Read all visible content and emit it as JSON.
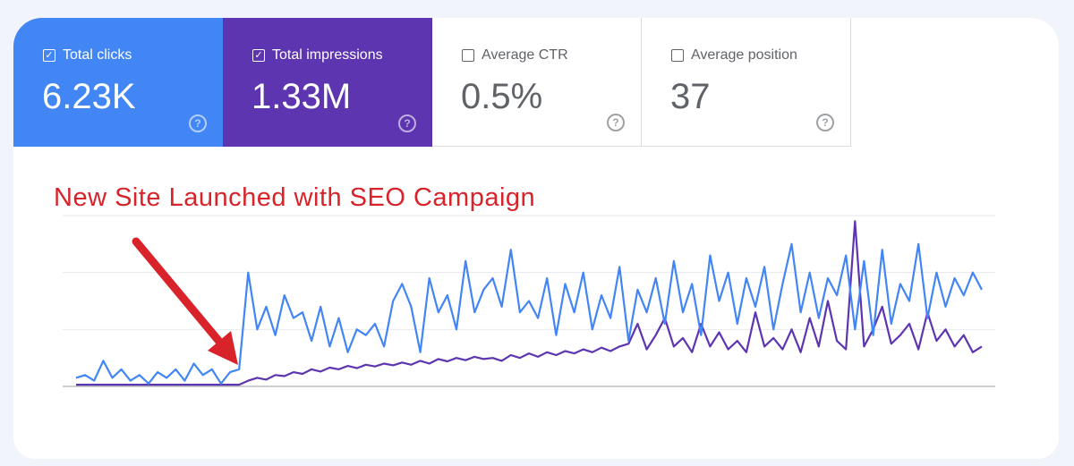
{
  "metrics": [
    {
      "label": "Total clicks",
      "value": "6.23K",
      "checked": true,
      "color": "#4285f4"
    },
    {
      "label": "Total impressions",
      "value": "1.33M",
      "checked": true,
      "color": "#5e35b1"
    },
    {
      "label": "Average CTR",
      "value": "0.5%",
      "checked": false
    },
    {
      "label": "Average position",
      "value": "37",
      "checked": false
    }
  ],
  "annotation": {
    "text": "New Site Launched with SEO Campaign",
    "color": "#d8232a",
    "arrow": "red-arrow pointing to launch point"
  },
  "chart_data": {
    "type": "line",
    "title": "",
    "xlabel": "",
    "ylabel": "",
    "grid": true,
    "ylim": [
      0,
      3
    ],
    "series": [
      {
        "name": "Total clicks",
        "color": "#4285f4",
        "values": [
          0.15,
          0.2,
          0.1,
          0.45,
          0.15,
          0.3,
          0.1,
          0.2,
          0.05,
          0.25,
          0.15,
          0.3,
          0.1,
          0.4,
          0.2,
          0.3,
          0.05,
          0.25,
          0.3,
          2.0,
          1.0,
          1.4,
          0.9,
          1.6,
          1.2,
          1.3,
          0.8,
          1.4,
          0.7,
          1.2,
          0.6,
          1.0,
          0.9,
          1.1,
          0.7,
          1.5,
          1.8,
          1.4,
          0.6,
          1.9,
          1.3,
          1.6,
          1.0,
          2.2,
          1.3,
          1.7,
          1.9,
          1.4,
          2.4,
          1.3,
          1.5,
          1.2,
          1.9,
          0.9,
          1.8,
          1.3,
          2.0,
          1.0,
          1.6,
          1.2,
          2.1,
          0.8,
          1.7,
          1.3,
          1.9,
          1.1,
          2.2,
          1.3,
          1.8,
          0.9,
          2.3,
          1.5,
          2.0,
          1.1,
          1.9,
          1.4,
          2.1,
          1.0,
          1.8,
          2.5,
          1.3,
          2.0,
          1.2,
          1.9,
          1.6,
          2.3,
          1.0,
          2.2,
          0.9,
          2.4,
          1.1,
          1.8,
          1.5,
          2.5,
          1.2,
          2.0,
          1.4,
          1.9,
          1.6,
          2.0,
          1.7
        ]
      },
      {
        "name": "Total impressions",
        "color": "#5e35b1",
        "values": [
          0.03,
          0.03,
          0.03,
          0.03,
          0.03,
          0.03,
          0.03,
          0.03,
          0.03,
          0.03,
          0.03,
          0.03,
          0.03,
          0.03,
          0.03,
          0.03,
          0.03,
          0.03,
          0.03,
          0.1,
          0.15,
          0.12,
          0.2,
          0.18,
          0.25,
          0.22,
          0.3,
          0.26,
          0.33,
          0.3,
          0.36,
          0.32,
          0.38,
          0.35,
          0.4,
          0.37,
          0.42,
          0.38,
          0.45,
          0.4,
          0.48,
          0.44,
          0.5,
          0.46,
          0.52,
          0.48,
          0.5,
          0.45,
          0.55,
          0.5,
          0.58,
          0.52,
          0.6,
          0.55,
          0.62,
          0.58,
          0.65,
          0.6,
          0.68,
          0.62,
          0.7,
          0.75,
          1.1,
          0.65,
          0.9,
          1.2,
          0.7,
          0.85,
          0.6,
          1.1,
          0.7,
          0.95,
          0.65,
          0.8,
          0.6,
          1.3,
          0.7,
          0.85,
          0.65,
          1.0,
          0.6,
          1.2,
          0.7,
          1.5,
          0.8,
          0.65,
          2.9,
          0.7,
          1.0,
          1.4,
          0.75,
          0.9,
          1.1,
          0.65,
          1.3,
          0.8,
          1.0,
          0.7,
          0.9,
          0.6,
          0.7
        ]
      }
    ]
  }
}
